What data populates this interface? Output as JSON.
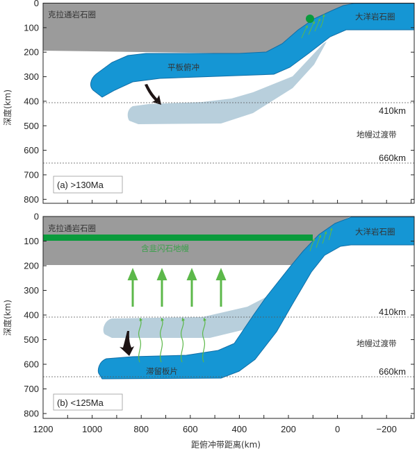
{
  "colors": {
    "craton": "#9b9b9b",
    "slab": "#1596d4",
    "slab_edge": "#116ea6",
    "old_slab": "#b8cfdc",
    "green_band": "#0a9b3c",
    "green_arrow": "#5cb84a",
    "arrow_black": "#1e1414"
  },
  "axes": {
    "y_label": "深度(km)",
    "x_label": "距俯冲带距离(km)",
    "y_ticks": [
      "0",
      "100",
      "200",
      "300",
      "400",
      "500",
      "600",
      "700",
      "800"
    ],
    "x_ticks": [
      "1200",
      "1000",
      "800",
      "600",
      "400",
      "200",
      "0",
      "−200"
    ]
  },
  "panel_a": {
    "legend": "(a) >130Ma",
    "craton_label": "克拉通岩石圈",
    "ocean_label": "大洋岩石圈",
    "slab_label": "平板俯冲",
    "d410": "410km",
    "d660": "660km",
    "mtz_label": "地幔过渡带"
  },
  "panel_b": {
    "legend": "(b) <125Ma",
    "craton_label": "克拉通岩石圈",
    "ocean_label": "大洋岩石圈",
    "amphibole_label": "含韭闪石地幔",
    "slab_label": "滞留板片",
    "d410": "410km",
    "d660": "660km",
    "mtz_label": "地幔过渡带"
  }
}
